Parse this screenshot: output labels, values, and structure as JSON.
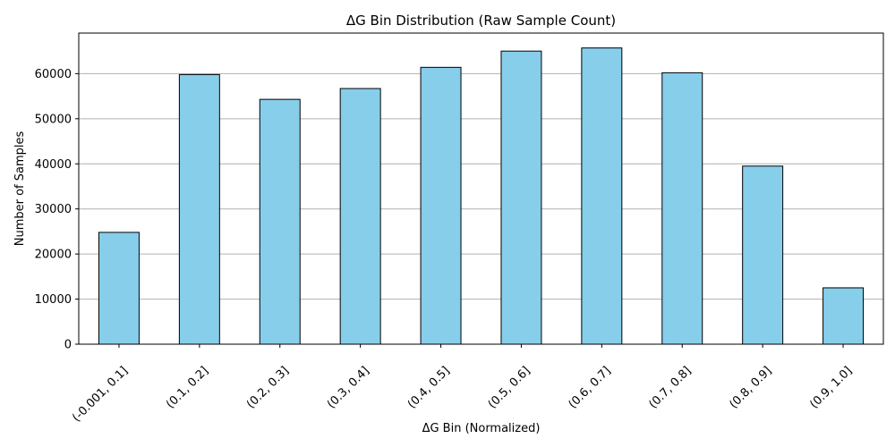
{
  "chart_data": {
    "type": "bar",
    "title": "ΔG Bin Distribution (Raw Sample Count)",
    "xlabel": "ΔG Bin (Normalized)",
    "ylabel": "Number of Samples",
    "categories": [
      "(-0.001, 0.1]",
      "(0.1, 0.2]",
      "(0.2, 0.3]",
      "(0.3, 0.4]",
      "(0.4, 0.5]",
      "(0.5, 0.6]",
      "(0.6, 0.7]",
      "(0.7, 0.8]",
      "(0.8, 0.9]",
      "(0.9, 1.0]"
    ],
    "values": [
      24800,
      59800,
      54300,
      56700,
      61400,
      65000,
      65700,
      60200,
      39500,
      12500
    ],
    "ylim": [
      0,
      69000
    ],
    "yticks": [
      0,
      10000,
      20000,
      30000,
      40000,
      50000,
      60000
    ],
    "grid": "y",
    "colors": {
      "bar_fill": "#87ceeb",
      "bar_edge": "#000000",
      "grid": "#b0b0b0"
    }
  }
}
